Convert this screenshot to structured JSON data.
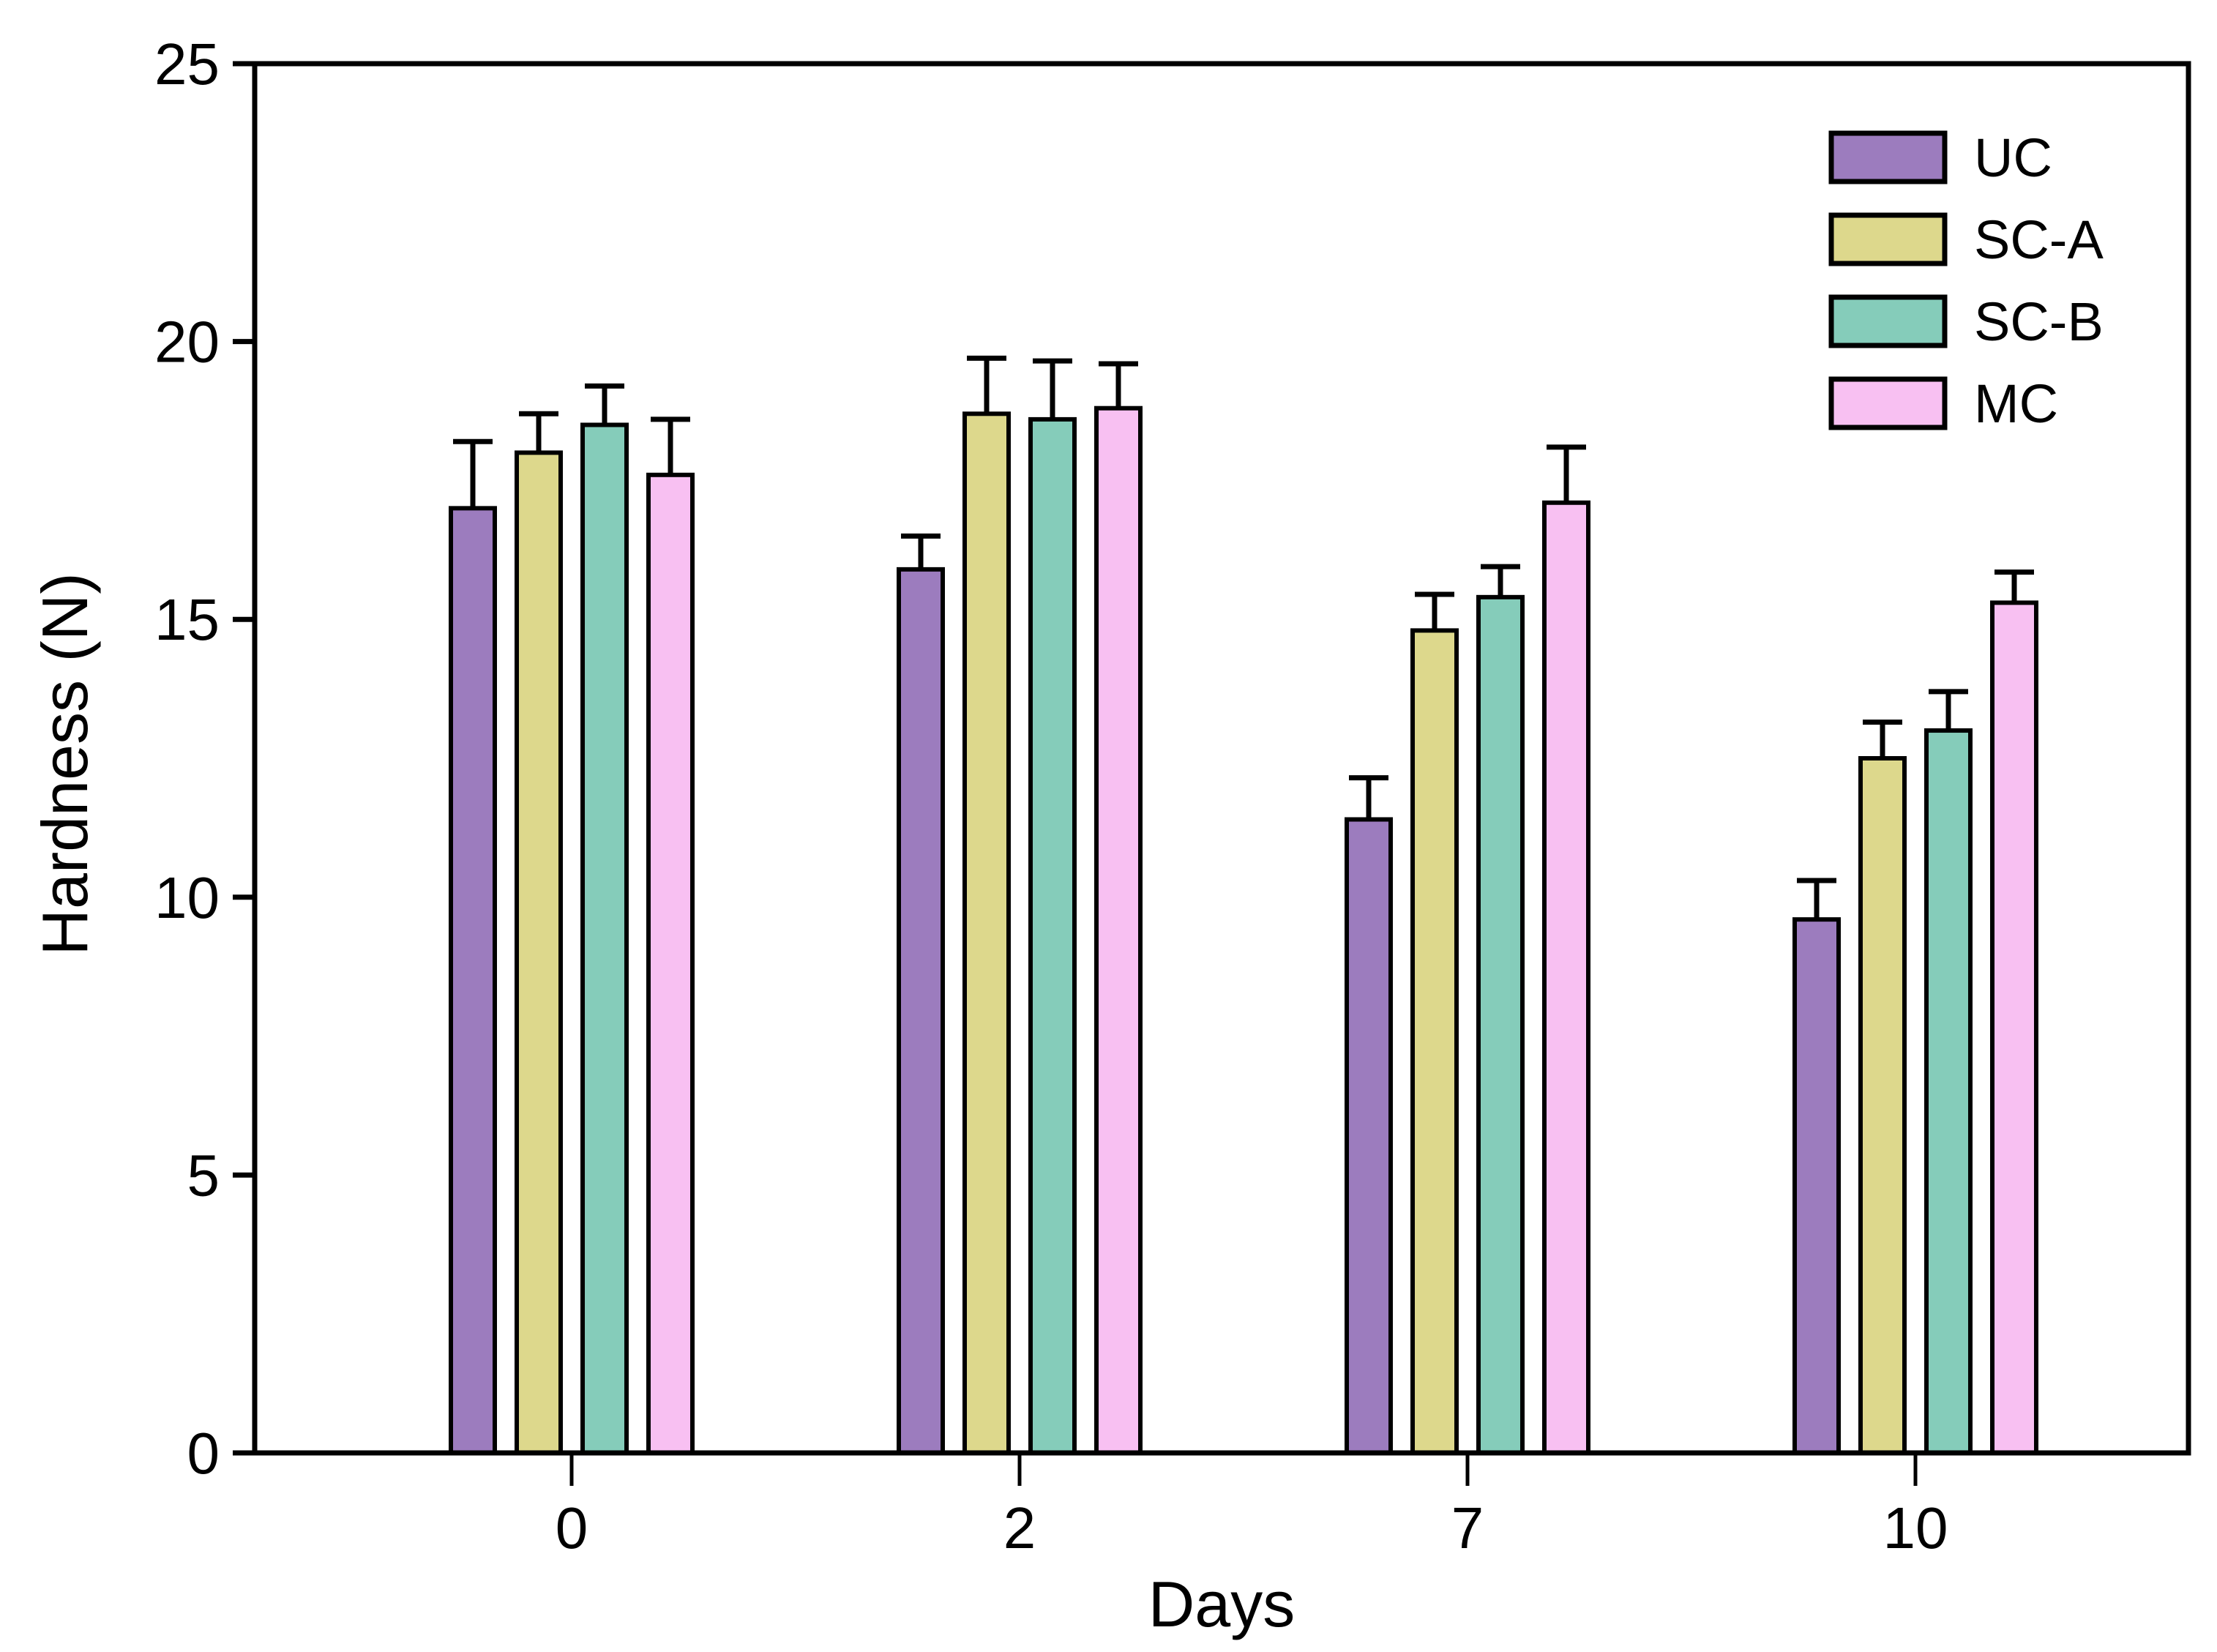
{
  "figure": {
    "background": "#ffffff",
    "axis_color": "#000000",
    "text_color": "#000000"
  },
  "chart_data": {
    "type": "bar",
    "title": "",
    "xlabel": "Days",
    "ylabel": "Hardness (N)",
    "categories": [
      "0",
      "2",
      "7",
      "10"
    ],
    "ylim": [
      0,
      25
    ],
    "yticks": [
      0,
      5,
      10,
      15,
      20,
      25
    ],
    "grid": false,
    "legend_position": "top-right-inside",
    "error_bars": "upper-only",
    "series": [
      {
        "name": "UC",
        "color": "#9c7cbe",
        "values": [
          17.0,
          15.9,
          11.4,
          9.6
        ],
        "errors": [
          1.2,
          0.6,
          0.75,
          0.7
        ]
      },
      {
        "name": "SC-A",
        "color": "#ddd88c",
        "values": [
          18.0,
          18.7,
          14.8,
          12.5
        ],
        "errors": [
          0.7,
          1.0,
          0.65,
          0.65
        ]
      },
      {
        "name": "SC-B",
        "color": "#85ccba",
        "values": [
          18.5,
          18.6,
          15.4,
          13.0
        ],
        "errors": [
          0.7,
          1.05,
          0.55,
          0.7
        ]
      },
      {
        "name": "MC",
        "color": "#f8c0f2",
        "values": [
          17.6,
          18.8,
          17.1,
          15.3
        ],
        "errors": [
          1.0,
          0.8,
          1.0,
          0.55
        ]
      }
    ]
  }
}
